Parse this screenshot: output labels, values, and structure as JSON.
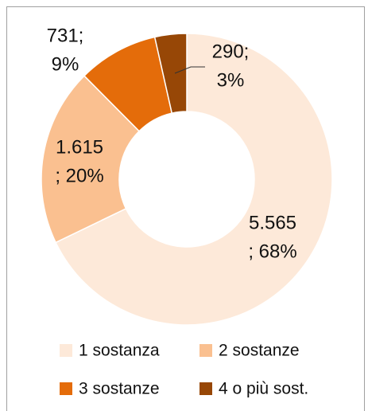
{
  "chart_data": {
    "type": "donut",
    "categories": [
      "1 sostanza",
      "2 sostanze",
      "3 sostanze",
      "4 o più sost."
    ],
    "values": [
      5565,
      1615,
      731,
      290
    ],
    "value_labels": [
      [
        "5.565",
        "; 68%"
      ],
      [
        "1.615",
        "; 20%"
      ],
      [
        "731;",
        "9%"
      ],
      [
        "290;",
        "3%"
      ]
    ],
    "colors": [
      "#fde9d9",
      "#fac090",
      "#e46c0a",
      "#974706"
    ],
    "legend": "bottom"
  }
}
